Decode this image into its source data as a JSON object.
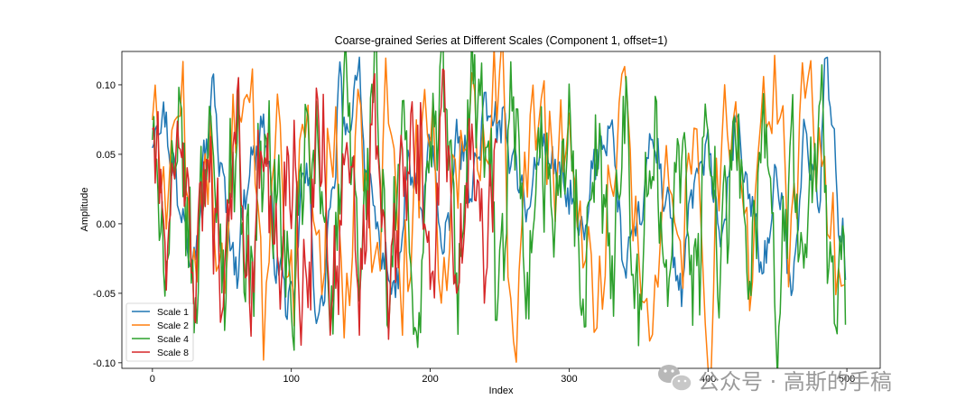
{
  "chart_data": {
    "type": "line",
    "title": "Coarse-grained Series at Different Scales (Component 1, offset=1)",
    "xlabel": "Index",
    "ylabel": "Amplitude",
    "xlim": [
      -22,
      524
    ],
    "ylim": [
      -0.104,
      0.124
    ],
    "xticks": [
      0,
      100,
      200,
      300,
      400,
      500
    ],
    "xtick_labels": [
      "0",
      "100",
      "200",
      "300",
      "400",
      "500"
    ],
    "yticks": [
      -0.1,
      -0.05,
      0.0,
      0.05,
      0.1
    ],
    "ytick_labels": [
      "-0.10",
      "-0.05",
      "0.00",
      "0.05",
      "0.10"
    ],
    "grid": false,
    "legend_position": "lower-left",
    "series": [
      {
        "name": "Scale 1",
        "color": "#1f77b4",
        "x_start": 0,
        "x_step": 1,
        "n_points": 500,
        "anchor_x": [
          0,
          5,
          10,
          15,
          20,
          30,
          40,
          44,
          50,
          60,
          70,
          80,
          90,
          100,
          110,
          120,
          130,
          135,
          140,
          148,
          155,
          165,
          175,
          185,
          195,
          200,
          210,
          220,
          230,
          240,
          250,
          260,
          270,
          280,
          290,
          300,
          310,
          320,
          330,
          340,
          350,
          360,
          370,
          380,
          390,
          400,
          410,
          420,
          430,
          440,
          450,
          460,
          470,
          480,
          485,
          490,
          495,
          500
        ],
        "anchor_y": [
          0.06,
          0.08,
          0.07,
          0.04,
          0.01,
          -0.02,
          0.06,
          0.097,
          0.03,
          -0.03,
          0.04,
          0.07,
          -0.03,
          -0.06,
          0.04,
          -0.07,
          0.02,
          0.1,
          0.06,
          0.113,
          0.03,
          -0.02,
          -0.05,
          0.04,
          0.01,
          0.06,
          -0.02,
          0.06,
          0.03,
          0.08,
          0.07,
          0.05,
          0.01,
          0.06,
          0.04,
          0.02,
          -0.01,
          0.05,
          0.07,
          -0.03,
          0.0,
          0.06,
          0.02,
          -0.05,
          0.03,
          0.05,
          -0.01,
          0.07,
          0.02,
          -0.03,
          0.03,
          -0.04,
          0.06,
          0.02,
          0.12,
          0.06,
          0.0,
          -0.04
        ],
        "noise_amplitude": 0.012
      },
      {
        "name": "Scale 2",
        "color": "#ff7f0e",
        "x_start": 0,
        "x_step": 2,
        "n_points": 250,
        "anchor_x": [
          0,
          10,
          20,
          30,
          40,
          50,
          60,
          70,
          80,
          90,
          100,
          110,
          120,
          130,
          140,
          150,
          160,
          170,
          180,
          190,
          200,
          210,
          220,
          230,
          240,
          250,
          260,
          270,
          280,
          290,
          300,
          310,
          320,
          330,
          340,
          350,
          360,
          370,
          380,
          390,
          400,
          410,
          420,
          430,
          440,
          450,
          460,
          470,
          480,
          490,
          500
        ],
        "anchor_y": [
          0.07,
          0.03,
          0.09,
          -0.04,
          0.05,
          -0.06,
          0.08,
          0.1,
          -0.07,
          0.06,
          -0.05,
          0.08,
          -0.03,
          0.06,
          -0.06,
          0.07,
          -0.04,
          0.09,
          -0.05,
          0.04,
          0.08,
          -0.06,
          0.05,
          0.09,
          0.05,
          0.115,
          -0.07,
          0.05,
          0.09,
          0.04,
          0.07,
          -0.03,
          -0.06,
          0.04,
          0.11,
          -0.02,
          -0.07,
          0.03,
          -0.03,
          0.09,
          -0.09,
          0.06,
          0.09,
          -0.03,
          0.07,
          0.1,
          -0.02,
          0.11,
          0.06,
          -0.01,
          -0.06
        ],
        "noise_amplitude": 0.03
      },
      {
        "name": "Scale 4",
        "color": "#2ca02c",
        "x_start": 0,
        "x_step": 1,
        "n_points": 500,
        "anchor_x": [
          0,
          10,
          20,
          30,
          40,
          50,
          60,
          70,
          80,
          90,
          100,
          110,
          120,
          130,
          140,
          150,
          160,
          170,
          180,
          190,
          200,
          210,
          220,
          230,
          240,
          250,
          260,
          270,
          280,
          290,
          300,
          310,
          320,
          330,
          340,
          350,
          360,
          370,
          380,
          390,
          400,
          410,
          420,
          430,
          440,
          450,
          460,
          470,
          480,
          490,
          500
        ],
        "anchor_y": [
          0.05,
          -0.02,
          0.06,
          -0.05,
          0.07,
          -0.03,
          0.06,
          -0.04,
          0.05,
          0.02,
          -0.06,
          0.05,
          0.04,
          -0.05,
          0.09,
          -0.03,
          0.11,
          -0.06,
          0.07,
          -0.08,
          0.05,
          0.1,
          -0.04,
          0.11,
          0.06,
          -0.05,
          0.08,
          -0.06,
          0.05,
          0.01,
          0.07,
          -0.06,
          0.05,
          -0.03,
          0.08,
          -0.06,
          0.06,
          -0.04,
          0.07,
          -0.05,
          0.06,
          -0.02,
          0.08,
          -0.05,
          0.07,
          -0.07,
          0.05,
          -0.02,
          0.08,
          -0.05,
          -0.02
        ],
        "noise_amplitude": 0.035
      },
      {
        "name": "Scale 8",
        "color": "#d62728",
        "x_start": 0,
        "x_step": 1,
        "n_points": 249,
        "anchor_x": [
          0,
          10,
          20,
          30,
          40,
          50,
          60,
          70,
          80,
          90,
          100,
          110,
          120,
          130,
          140,
          150,
          160,
          170,
          180,
          190,
          200,
          210,
          220,
          230,
          240,
          248
        ],
        "anchor_y": [
          0.07,
          -0.01,
          0.06,
          -0.03,
          0.05,
          -0.04,
          0.07,
          -0.05,
          0.06,
          -0.03,
          0.05,
          -0.06,
          0.08,
          -0.05,
          0.04,
          -0.04,
          0.07,
          -0.05,
          0.03,
          0.06,
          -0.04,
          0.09,
          -0.05,
          0.06,
          -0.03,
          0.06
        ],
        "noise_amplitude": 0.035
      }
    ]
  },
  "legend": {
    "items": [
      {
        "label": "Scale 1",
        "color": "#1f77b4"
      },
      {
        "label": "Scale 2",
        "color": "#ff7f0e"
      },
      {
        "label": "Scale 4",
        "color": "#2ca02c"
      },
      {
        "label": "Scale 8",
        "color": "#d62728"
      }
    ]
  },
  "watermark": {
    "text": "公众号 · 高斯的手稿",
    "icon": "wechat-icon"
  }
}
